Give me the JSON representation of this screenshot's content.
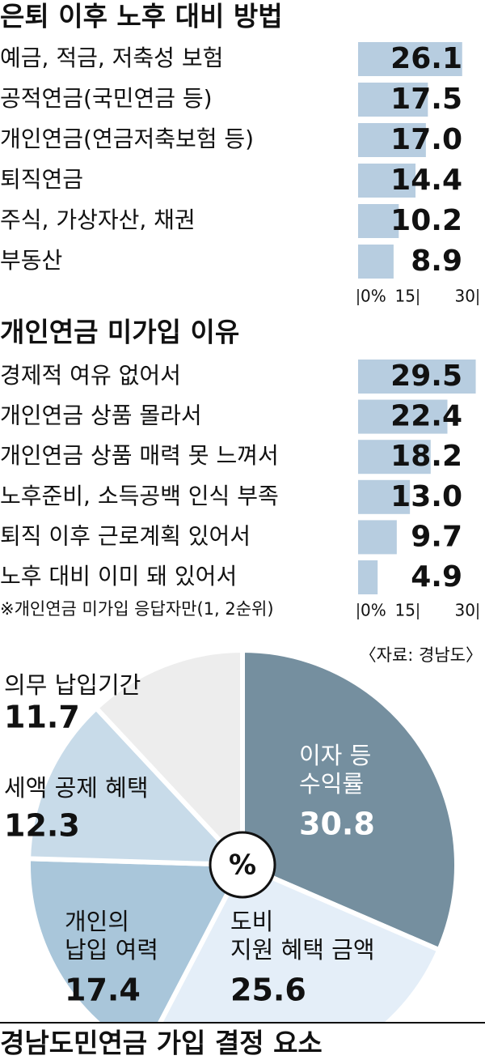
{
  "chart_data": [
    {
      "type": "hbar",
      "title": "은퇴 이후 노후 대비 방법",
      "categories": [
        "예금, 적금, 저축성 보험",
        "공적연금(국민연금 등)",
        "개인연금(연금저축보험 등)",
        "퇴직연금",
        "주식, 가상자산, 채권",
        "부동산"
      ],
      "values": [
        26.1,
        17.5,
        17,
        14.4,
        10.2,
        8.9
      ],
      "value_labels": [
        "26.1",
        "17.5",
        "17.0",
        "14.4",
        "10.2",
        "8.9"
      ],
      "color": "#b7cde0",
      "xlim": [
        0,
        30
      ],
      "xticks": [
        {
          "value": 0,
          "label": "0%"
        },
        15,
        30
      ]
    },
    {
      "type": "hbar",
      "title": "개인연금 미가입 이유",
      "categories": [
        "경제적 여유 없어서",
        "개인연금 상품 몰라서",
        "개인연금 상품 매력 못 느껴서",
        "노후준비, 소득공백 인식 부족",
        "퇴직 이후 근로계획 있어서",
        "노후 대비 이미 돼 있어서"
      ],
      "values": [
        29.5,
        22.4,
        18.2,
        13,
        9.7,
        4.9
      ],
      "value_labels": [
        "29.5",
        "22.4",
        "18.2",
        "13.0",
        "9.7",
        "4.9"
      ],
      "note": "※개인연금 미가입 응답자만(1, 2순위)",
      "color": "#b7cde0",
      "xlim": [
        0,
        30
      ],
      "xticks": [
        {
          "value": 0,
          "label": "0%"
        },
        15,
        30
      ]
    },
    {
      "type": "pie",
      "title": "경남도민연금 가입 결정 요소",
      "source": "〈자료: 경남도〉",
      "unit": "%",
      "categories": [
        "이자 등\n수익률",
        "도비\n지원 혜택 금액",
        "개인의\n납입 여력",
        "세액 공제 혜택",
        "의무 납입기간"
      ],
      "values": [
        30.8,
        25.6,
        17.4,
        12.3,
        11.7
      ],
      "colors": [
        "#758f9f",
        "#e4eef8",
        "#a9c6da",
        "#c8dbe9",
        "#ededed"
      ]
    }
  ]
}
